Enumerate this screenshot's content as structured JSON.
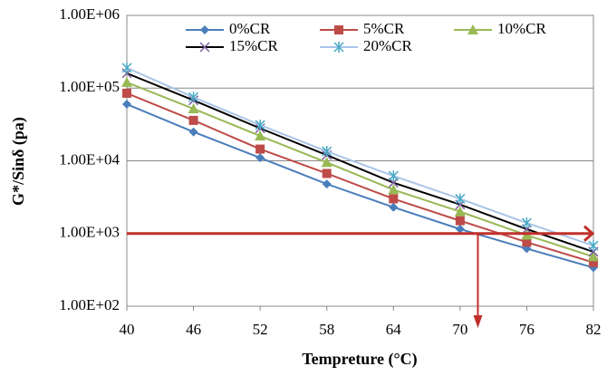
{
  "chart_data": {
    "type": "line",
    "log_y": true,
    "grid": true,
    "x": [
      40,
      46,
      52,
      58,
      64,
      70,
      76,
      82
    ],
    "xlim": [
      40,
      82
    ],
    "xticks": [
      40,
      46,
      52,
      58,
      64,
      70,
      76,
      82
    ],
    "ylim": [
      100,
      1000000
    ],
    "yticks": [
      {
        "value": 100,
        "label": "1.00E+02"
      },
      {
        "value": 1000,
        "label": "1.00E+03"
      },
      {
        "value": 10000,
        "label": "1.00E+04"
      },
      {
        "value": 100000,
        "label": "1.00E+05"
      },
      {
        "value": 1000000,
        "label": "1.00E+06"
      }
    ],
    "x_label": "Tempreture (°C)",
    "y_label": "G*/Sinδ  (pa)",
    "series": [
      {
        "name": "0%CR",
        "color": "#4a7ebb",
        "marker": "diamond",
        "marker_color": "#4a7ebb",
        "values": [
          60000,
          25000,
          11000,
          4800,
          2300,
          1150,
          620,
          340
        ]
      },
      {
        "name": "5%CR",
        "color": "#be4b48",
        "marker": "square",
        "marker_color": "#be4b48",
        "values": [
          85000,
          36000,
          14500,
          6700,
          3000,
          1500,
          760,
          400
        ]
      },
      {
        "name": "10%CR",
        "color": "#98b954",
        "marker": "triangle",
        "marker_color": "#98b954",
        "values": [
          120000,
          52000,
          22000,
          9500,
          4000,
          2000,
          950,
          480
        ]
      },
      {
        "name": "15%CR",
        "color": "#000000",
        "marker": "cross",
        "marker_color": "#7d60a0",
        "values": [
          160000,
          68000,
          28000,
          12000,
          5000,
          2500,
          1150,
          560
        ]
      },
      {
        "name": "20%CR",
        "color": "#a9c5e8",
        "marker": "star",
        "marker_color": "#46aac5",
        "values": [
          190000,
          75000,
          31000,
          13500,
          6200,
          3000,
          1400,
          680
        ]
      }
    ],
    "reference_line": {
      "y": 1000,
      "color": "#c0302a"
    },
    "reference_drop": {
      "x": 71.6,
      "color": "#c0302a"
    }
  }
}
